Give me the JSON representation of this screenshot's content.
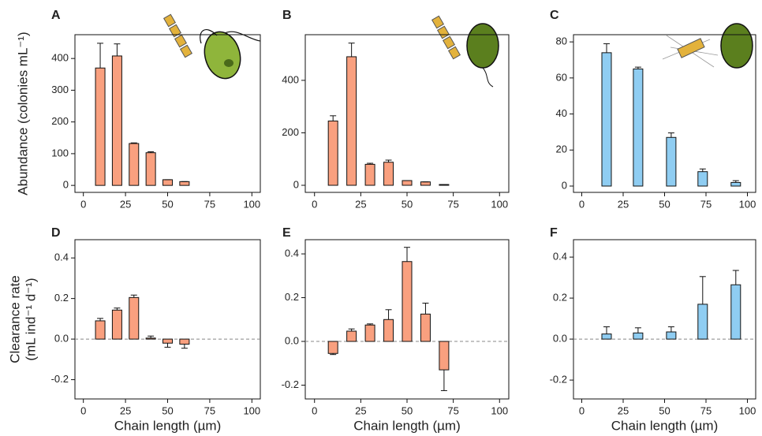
{
  "chart_data": [
    {
      "type": "bar",
      "panel": "A",
      "ylabel": "Abundance (colonies mL⁻¹)",
      "x": [
        10,
        20,
        30,
        40,
        50,
        60
      ],
      "values": [
        370,
        408,
        132,
        103,
        18,
        12
      ],
      "errors": [
        78,
        38,
        2,
        3,
        0,
        0
      ],
      "color": "#f9a07f",
      "xlim": [
        -5,
        105
      ],
      "xticks": [
        0,
        25,
        50,
        75,
        100
      ],
      "ylim": [
        -22,
        475
      ],
      "yticks": [
        0,
        100,
        200,
        300,
        400
      ]
    },
    {
      "type": "bar",
      "panel": "B",
      "x": [
        10,
        20,
        30,
        40,
        50,
        60,
        70
      ],
      "values": [
        245,
        490,
        80,
        88,
        18,
        13,
        3
      ],
      "errors": [
        20,
        52,
        4,
        8,
        0,
        0,
        0
      ],
      "color": "#f9a07f",
      "xlim": [
        -5,
        105
      ],
      "xticks": [
        0,
        25,
        50,
        75,
        100
      ],
      "ylim": [
        -27,
        574
      ],
      "yticks": [
        0,
        200,
        400
      ]
    },
    {
      "type": "bar",
      "panel": "C",
      "x": [
        15,
        34,
        54,
        73,
        93
      ],
      "values": [
        74,
        65,
        27,
        8,
        2
      ],
      "errors": [
        5,
        1,
        2.5,
        1.5,
        1
      ],
      "color": "#8fcdf2",
      "xlim": [
        -5,
        105
      ],
      "xticks": [
        0,
        25,
        50,
        75,
        100
      ],
      "ylim": [
        -3.5,
        84
      ],
      "yticks": [
        0,
        20,
        40,
        60,
        80
      ]
    },
    {
      "type": "bar",
      "panel": "D",
      "ylabel": [
        "Clearance rate",
        "(mL ind⁻¹ d⁻¹)"
      ],
      "xlabel": "Chain length (µm)",
      "x": [
        10,
        20,
        30,
        40,
        50,
        60
      ],
      "values": [
        0.09,
        0.143,
        0.205,
        0.005,
        -0.02,
        -0.025
      ],
      "errors": [
        0.012,
        0.01,
        0.012,
        0.01,
        0.02,
        0.02
      ],
      "color": "#f9a07f",
      "xlim": [
        -5,
        105
      ],
      "xticks": [
        0,
        25,
        50,
        75,
        100
      ],
      "ylim": [
        -0.295,
        0.49
      ],
      "yticks": [
        -0.2,
        {
          "value": 0,
          "label": "0.0"
        },
        0.2,
        0.4
      ],
      "zero_line": true
    },
    {
      "type": "bar",
      "panel": "E",
      "xlabel": "Chain length (µm)",
      "x": [
        10,
        20,
        30,
        40,
        50,
        60,
        70
      ],
      "values": [
        -0.055,
        0.047,
        0.075,
        0.1,
        0.365,
        0.125,
        -0.13
      ],
      "errors": [
        0.005,
        0.01,
        0.005,
        0.045,
        0.065,
        0.05,
        0.095
      ],
      "color": "#f9a07f",
      "xlim": [
        -5,
        105
      ],
      "xticks": [
        0,
        25,
        50,
        75,
        100
      ],
      "ylim": [
        -0.263,
        0.465
      ],
      "yticks": [
        -0.2,
        {
          "value": 0,
          "label": "0.0"
        },
        0.2,
        0.4
      ],
      "zero_line": true
    },
    {
      "type": "bar",
      "panel": "F",
      "xlabel": "Chain length (µm)",
      "x": [
        15,
        34,
        54,
        73,
        93
      ],
      "values": [
        0.025,
        0.03,
        0.035,
        0.17,
        0.265
      ],
      "errors": [
        0.035,
        0.025,
        0.025,
        0.135,
        0.07
      ],
      "color": "#8fcdf2",
      "xlim": [
        -5,
        105
      ],
      "xticks": [
        0,
        25,
        50,
        75,
        100
      ],
      "ylim": [
        -0.292,
        0.485
      ],
      "yticks": [
        -0.2,
        {
          "value": 0,
          "label": "0.0"
        },
        0.2,
        0.4
      ],
      "zero_line": true
    }
  ]
}
